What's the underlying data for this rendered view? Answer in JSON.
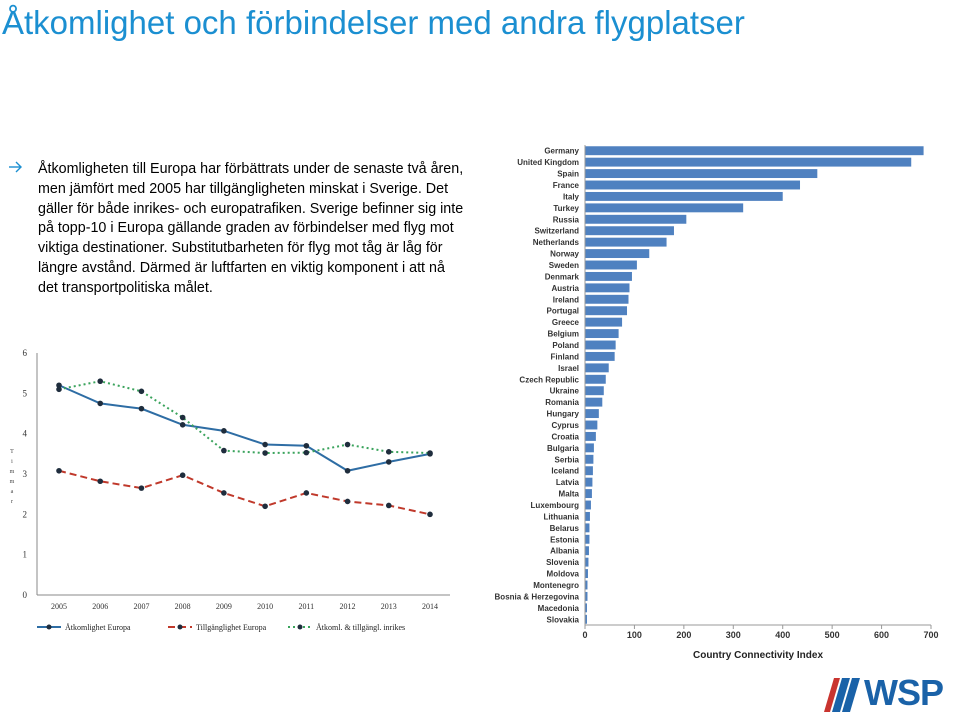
{
  "slide": {
    "title": "Åtkomlighet och förbindelser med andra flygplatser",
    "bullet": "Åtkomligheten till Europa har förbättrats under de senaste två åren, men jämfört med 2005 har tillgängligheten minskat i Sverige.  Det gäller för både inrikes- och europatrafiken. Sverige befinner sig inte på topp-10 i Europa gällande graden av förbindelser med flyg mot viktiga destinationer. Substitutbarheten för flyg mot tåg är låg för längre avstånd. Därmed är luftfarten en viktig komponent i att nå det transportpolitiska målet.",
    "logo_text": "WSP"
  },
  "colors": {
    "title": "#1b8fd1",
    "bar": "#4f81c0",
    "line_europa": "#2e6da4",
    "line_tillganglighet": "#c0392b",
    "line_inrikes": "#3aa35c"
  },
  "chart_data": [
    {
      "type": "line",
      "x": [
        "2005",
        "2006",
        "2007",
        "2008",
        "2009",
        "2010",
        "2011",
        "2012",
        "2013",
        "2014"
      ],
      "ylim": [
        0,
        6
      ],
      "yticks": [
        "0",
        "1",
        "2",
        "3",
        "4",
        "5",
        "6"
      ],
      "ylabel": "Timmar",
      "series": [
        {
          "name": "Åtkomlighet Europa",
          "values": [
            5.2,
            4.75,
            4.62,
            4.22,
            4.07,
            3.73,
            3.7,
            3.08,
            3.3,
            3.5
          ],
          "style": "solid",
          "color": "#2e6da4"
        },
        {
          "name": "Tillgänglighet Europa",
          "values": [
            3.08,
            2.82,
            2.65,
            2.97,
            2.53,
            2.2,
            2.53,
            2.32,
            2.22,
            2.0
          ],
          "style": "dashed",
          "color": "#c0392b"
        },
        {
          "name": "Åtkoml. & tillgängl. inrikes",
          "values": [
            5.1,
            5.3,
            5.05,
            4.4,
            3.58,
            3.52,
            3.53,
            3.73,
            3.55,
            3.52
          ],
          "style": "dotted",
          "color": "#3aa35c"
        }
      ]
    },
    {
      "type": "bar",
      "orientation": "horizontal",
      "categories": [
        "Germany",
        "United Kingdom",
        "Spain",
        "France",
        "Italy",
        "Turkey",
        "Russia",
        "Switzerland",
        "Netherlands",
        "Norway",
        "Sweden",
        "Denmark",
        "Austria",
        "Ireland",
        "Portugal",
        "Greece",
        "Belgium",
        "Poland",
        "Finland",
        "Israel",
        "Czech Republic",
        "Ukraine",
        "Romania",
        "Hungary",
        "Cyprus",
        "Croatia",
        "Bulgaria",
        "Serbia",
        "Iceland",
        "Latvia",
        "Malta",
        "Luxembourg",
        "Lithuania",
        "Belarus",
        "Estonia",
        "Albania",
        "Slovenia",
        "Moldova",
        "Montenegro",
        "Bosnia & Herzegovina",
        "Macedonia",
        "Slovakia"
      ],
      "values": [
        685,
        660,
        470,
        435,
        400,
        320,
        205,
        180,
        165,
        130,
        105,
        95,
        90,
        88,
        85,
        75,
        68,
        62,
        60,
        48,
        42,
        38,
        35,
        28,
        25,
        22,
        18,
        17,
        16,
        15,
        14,
        12,
        10,
        9,
        9,
        8,
        7,
        6,
        5,
        5,
        4,
        4
      ],
      "xlim": [
        0,
        700
      ],
      "xticks": [
        "0",
        "100",
        "200",
        "300",
        "400",
        "500",
        "600",
        "700"
      ],
      "xlabel": "Country Connectivity Index",
      "color": "#4f81c0"
    }
  ]
}
